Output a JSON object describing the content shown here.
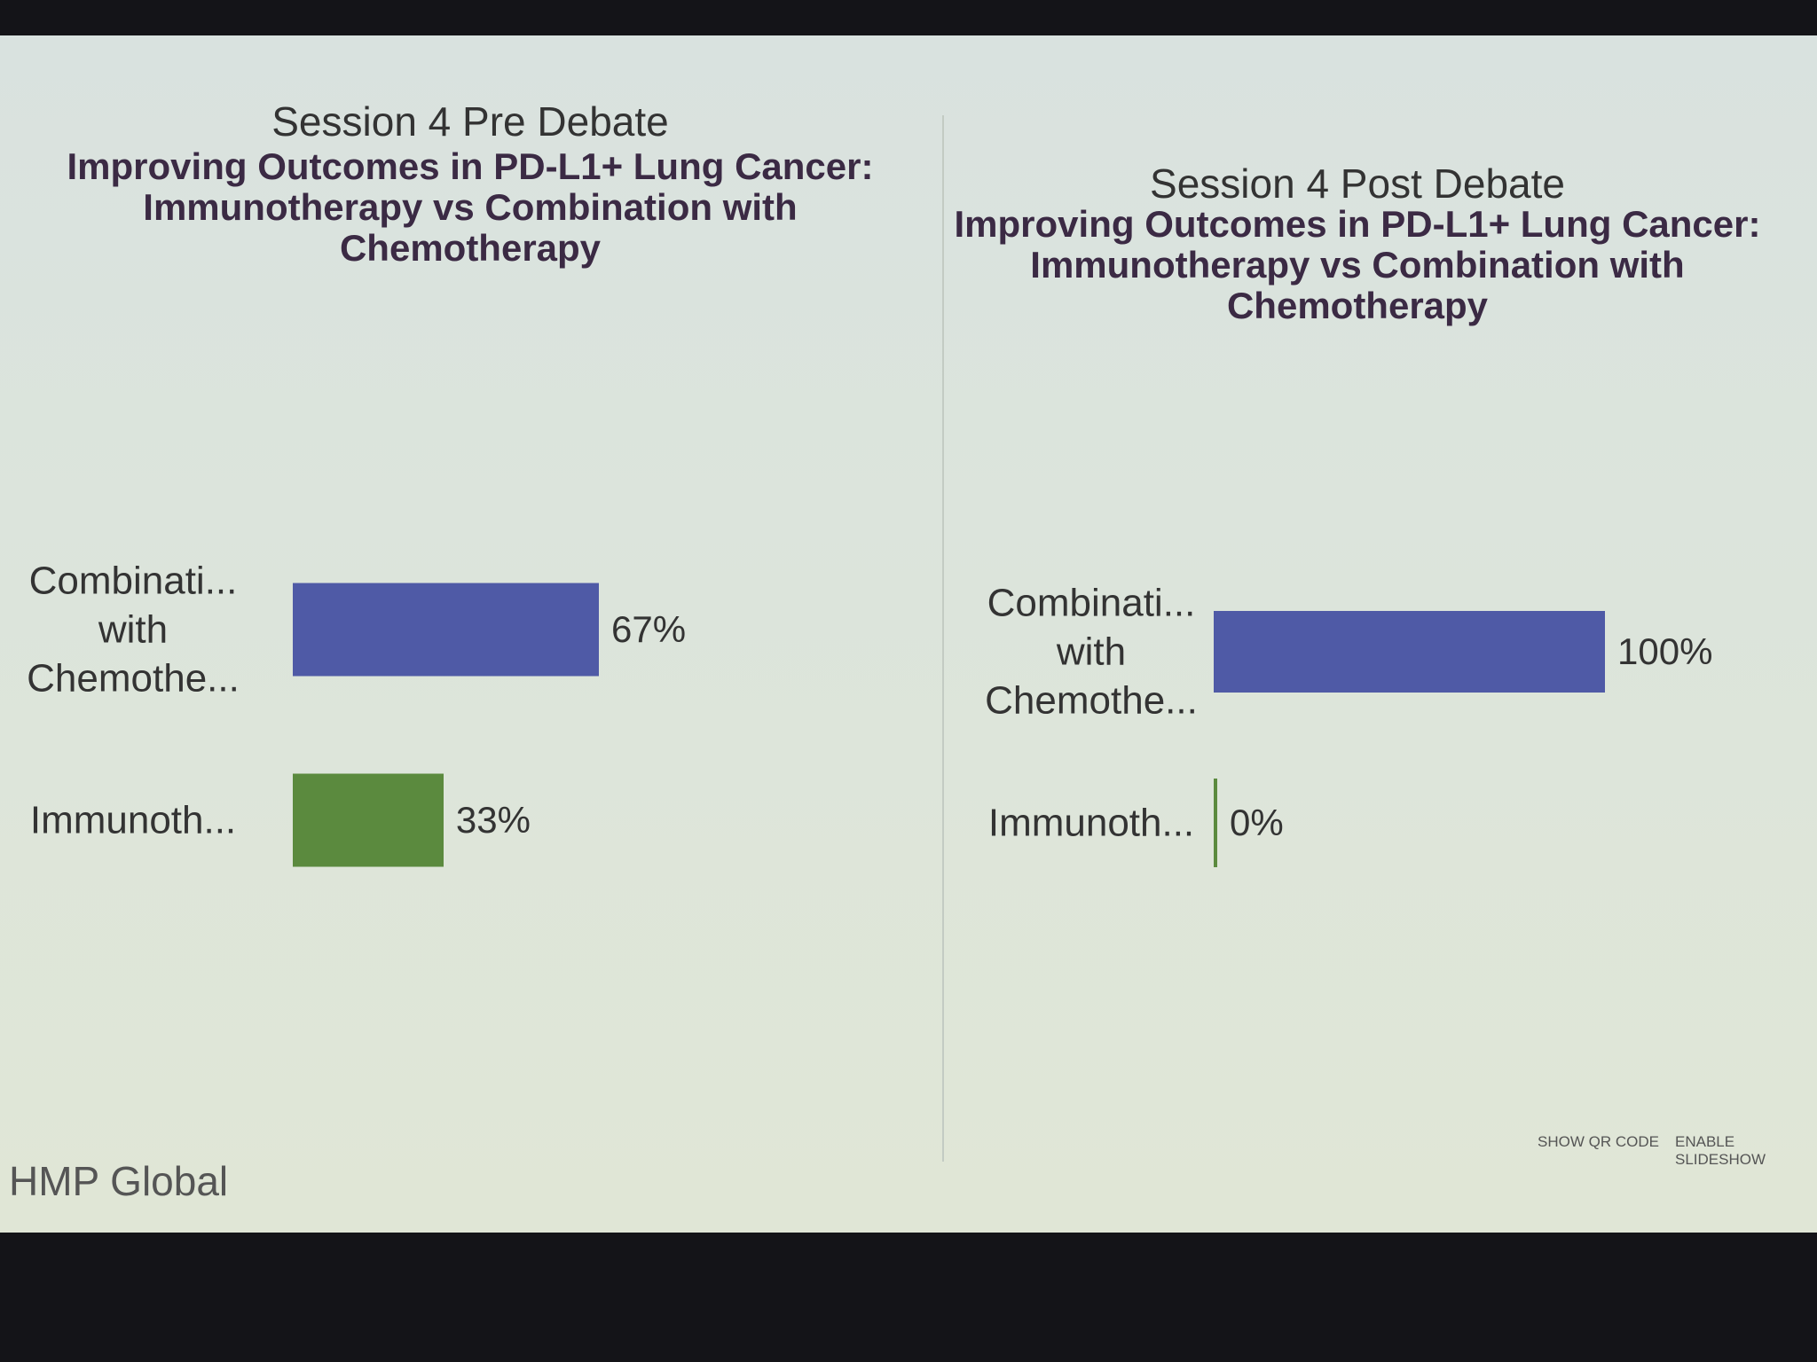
{
  "chart_data": [
    {
      "type": "bar",
      "orientation": "horizontal",
      "subtitle": "Session 4 Pre Debate",
      "title": "Improving Outcomes in PD-L1+ Lung Cancer: Immunotherapy vs Combination with Chemotherapy",
      "categories": [
        "Combinati... with Chemothe...",
        "Immunoth..."
      ],
      "values": [
        67,
        33
      ],
      "value_labels": [
        "67%",
        "33%"
      ],
      "colors": [
        "#4f5aa6",
        "#5b8a3e"
      ]
    },
    {
      "type": "bar",
      "orientation": "horizontal",
      "subtitle": "Session 4 Post Debate",
      "title": "Improving Outcomes in PD-L1+ Lung Cancer: Immunotherapy vs Combination with Chemotherapy",
      "categories": [
        "Combinati... with Chemothe...",
        "Immunoth..."
      ],
      "values": [
        100,
        0
      ],
      "value_labels": [
        "100%",
        "0%"
      ],
      "colors": [
        "#4f5aa6",
        "#5b8a3e"
      ]
    }
  ],
  "footer": {
    "logo": "HMP Global",
    "buttons": [
      "SHOW QR CODE",
      "ENABLE SLIDESHOW"
    ]
  }
}
